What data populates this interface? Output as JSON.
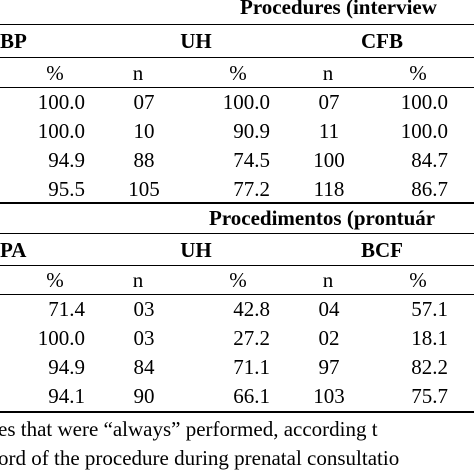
{
  "section_en": {
    "title": "Procedures (interview",
    "headers": [
      "BP",
      "UH",
      "CFB"
    ],
    "subheaders": [
      "%",
      "n",
      "%",
      "n",
      "%"
    ],
    "rows": [
      [
        "100.0",
        "07",
        "100.0",
        "07",
        "100.0"
      ],
      [
        "100.0",
        "10",
        "90.9",
        "11",
        "100.0"
      ],
      [
        "94.9",
        "88",
        "74.5",
        "100",
        "84.7"
      ],
      [
        "95.5",
        "105",
        "77.2",
        "118",
        "86.7"
      ]
    ]
  },
  "section_pt": {
    "title": "Procedimentos (prontuár",
    "headers": [
      "PA",
      "UH",
      "BCF"
    ],
    "subheaders": [
      "%",
      "n",
      "%",
      "n",
      "%"
    ],
    "rows": [
      [
        "71.4",
        "03",
        "42.8",
        "04",
        "57.1"
      ],
      [
        "100.0",
        "03",
        "27.2",
        "02",
        "18.1"
      ],
      [
        "94.9",
        "84",
        "71.1",
        "97",
        "82.2"
      ],
      [
        "94.1",
        "90",
        "66.1",
        "103",
        "75.7"
      ]
    ]
  },
  "footnote": {
    "line1": "es that were “always” performed, according t",
    "line2": "ord of the procedure during prenatal consultatio"
  }
}
